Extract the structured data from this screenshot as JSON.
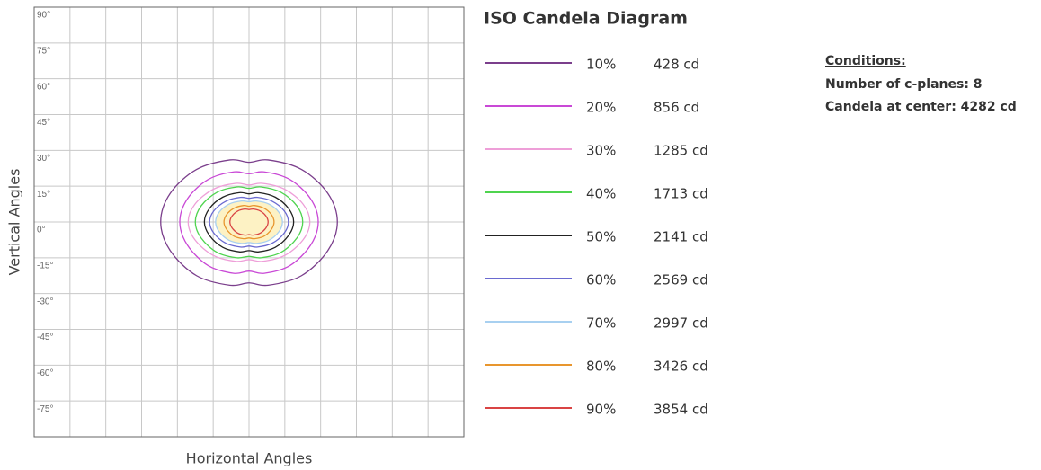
{
  "chart_data": {
    "type": "contour",
    "title": "ISO Candela Diagram",
    "xlabel": "Horizontal Angles",
    "ylabel": "Vertical Angles",
    "xlim": [
      -90,
      90
    ],
    "ylim": [
      -90,
      90
    ],
    "xticks": [
      -75,
      -60,
      -45,
      -30,
      -15,
      0,
      15,
      30,
      45,
      60,
      75
    ],
    "yticks": [
      {
        "value": 90,
        "label": "90°"
      },
      {
        "value": 75,
        "label": "75°"
      },
      {
        "value": 60,
        "label": "60°"
      },
      {
        "value": 45,
        "label": "45°"
      },
      {
        "value": 30,
        "label": "30°"
      },
      {
        "value": 15,
        "label": "15°"
      },
      {
        "value": 0,
        "label": "0°"
      },
      {
        "value": -15,
        "label": "-15°"
      },
      {
        "value": -30,
        "label": "-30°"
      },
      {
        "value": -45,
        "label": "-45°"
      },
      {
        "value": -60,
        "label": "-60°"
      },
      {
        "value": -75,
        "label": "-75°"
      }
    ],
    "grid": true,
    "series": [
      {
        "name": "10%",
        "color": "#7b3f8c",
        "level": 428,
        "level_label": "428 cd",
        "x": [
          37,
          33,
          22,
          8,
          0,
          -8,
          -22,
          -33,
          -37,
          -33,
          -22,
          -8,
          0,
          8,
          22,
          33
        ],
        "y": [
          0,
          12,
          22,
          26,
          25,
          26,
          22,
          12,
          0,
          -12,
          -22.5,
          -26.5,
          -25.5,
          -26.5,
          -22.5,
          -12
        ]
      },
      {
        "name": "20%",
        "color": "#c949d6",
        "level": 856,
        "level_label": "856 cd",
        "x": [
          29,
          25.8,
          17.1,
          6.4,
          0,
          -6.4,
          -17.1,
          -25.8,
          -29,
          -25.8,
          -17.1,
          -6.4,
          0,
          6.4,
          17.1,
          25.8
        ],
        "y": [
          0,
          9.7,
          17.8,
          21,
          20.2,
          21,
          17.8,
          9.7,
          0,
          -9.7,
          -18.3,
          -21.5,
          -20.6,
          -21.5,
          -18.3,
          -9.7
        ]
      },
      {
        "name": "30%",
        "color": "#ee9fd8",
        "level": 1285,
        "level_label": "1285 cd",
        "x": [
          25.5,
          22.7,
          15,
          5.6,
          0,
          -5.6,
          -15,
          -22.7,
          -25.5,
          -22.7,
          -15,
          -5.6,
          0,
          5.6,
          15,
          22.7
        ],
        "y": [
          0,
          7.4,
          13.7,
          16.2,
          15.5,
          16.2,
          13.7,
          7.4,
          0,
          -7.4,
          -14,
          -16.5,
          -15.8,
          -16.5,
          -14,
          -7.4
        ]
      },
      {
        "name": "40%",
        "color": "#4fd44f",
        "level": 1713,
        "level_label": "1713 cd",
        "x": [
          22.5,
          20,
          13.3,
          5,
          0,
          -5,
          -13.3,
          -20,
          -22.5,
          -20,
          -13.3,
          -5,
          0,
          5,
          13.3,
          20
        ],
        "y": [
          0,
          6.8,
          12.5,
          14.7,
          14.1,
          14.7,
          12.5,
          6.8,
          0,
          -6.8,
          -12.8,
          -15,
          -14.4,
          -15,
          -12.8,
          -6.8
        ]
      },
      {
        "name": "50%",
        "color": "#222222",
        "level": 2141,
        "level_label": "2141 cd",
        "x": [
          18.7,
          16.6,
          11,
          4.1,
          0,
          -4.1,
          -11,
          -16.6,
          -18.7,
          -16.6,
          -11,
          -4.1,
          0,
          4.1,
          11,
          16.6
        ],
        "y": [
          0,
          5.6,
          10.4,
          12.3,
          11.8,
          12.3,
          10.4,
          5.6,
          0,
          -5.6,
          -10.6,
          -12.5,
          -12,
          -12.5,
          -10.6,
          -5.6
        ]
      },
      {
        "name": "60%",
        "color": "#6a6ad0",
        "level": 2569,
        "level_label": "2569 cd",
        "x": [
          16.5,
          14.7,
          9.7,
          3.6,
          0,
          -3.6,
          -9.7,
          -14.7,
          -16.5,
          -14.7,
          -9.7,
          -3.6,
          0,
          3.6,
          9.7,
          14.7
        ],
        "y": [
          0,
          4.7,
          8.7,
          10.3,
          9.9,
          10.3,
          8.7,
          4.7,
          0,
          -4.7,
          -8.9,
          -10.5,
          -10.1,
          -10.5,
          -8.9,
          -4.7
        ]
      },
      {
        "name": "70%",
        "color": "#a8d0f0",
        "level": 2997,
        "level_label": "2997 cd",
        "fill": "#fdf2c4",
        "x": [
          14,
          12.5,
          8.3,
          3.1,
          0,
          -3.1,
          -8.3,
          -12.5,
          -14,
          -12.5,
          -8.3,
          -3.1,
          0,
          3.1,
          8.3,
          12.5
        ],
        "y": [
          0,
          4.1,
          7.5,
          8.8,
          8.5,
          8.8,
          7.5,
          4.1,
          0,
          -4.1,
          -7.7,
          -9,
          -8.6,
          -9,
          -7.7,
          -4.1
        ]
      },
      {
        "name": "80%",
        "color": "#e8962e",
        "level": 3426,
        "level_label": "3426 cd",
        "x": [
          10.5,
          9.3,
          6.2,
          2.3,
          0,
          -2.3,
          -6.2,
          -9.3,
          -10.5,
          -9.3,
          -6.2,
          -2.3,
          0,
          2.3,
          6.2,
          9.3
        ],
        "y": [
          0,
          3.2,
          5.8,
          6.9,
          6.6,
          6.9,
          5.8,
          3.2,
          0,
          -3.2,
          -6,
          -7,
          -6.7,
          -7,
          -6,
          -3.2
        ]
      },
      {
        "name": "90%",
        "color": "#d94444",
        "level": 3854,
        "level_label": "3854 cd",
        "x": [
          8,
          7.1,
          4.7,
          1.8,
          0,
          -1.8,
          -4.7,
          -7.1,
          -8,
          -7.1,
          -4.7,
          -1.8,
          0,
          1.8,
          4.7,
          7.1
        ],
        "y": [
          0,
          2.5,
          4.6,
          5.4,
          5.2,
          5.4,
          4.6,
          2.5,
          0,
          -2.5,
          -4.7,
          -5.5,
          -5.3,
          -5.5,
          -4.7,
          -2.5
        ]
      }
    ],
    "conditions": {
      "title": "Conditions:",
      "lines": [
        "Number of c-planes: 8",
        "Candela at center: 4282 cd"
      ]
    }
  }
}
